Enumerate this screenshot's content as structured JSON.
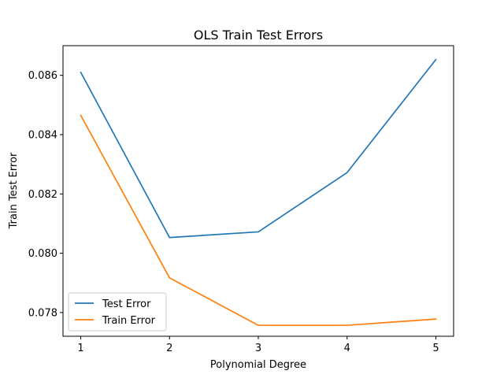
{
  "chart_data": {
    "type": "line",
    "title": "OLS Train Test Errors",
    "xlabel": "Polynomial Degree",
    "ylabel": "Train Test Error",
    "x": [
      1,
      2,
      3,
      4,
      5
    ],
    "xlim": [
      0.8,
      5.2
    ],
    "ylim": [
      0.0772,
      0.087
    ],
    "xticks": [
      1,
      2,
      3,
      4,
      5
    ],
    "yticks": [
      0.078,
      0.08,
      0.082,
      0.084,
      0.086
    ],
    "ytick_labels": [
      "0.078",
      "0.080",
      "0.082",
      "0.084",
      "0.086"
    ],
    "grid": false,
    "legend_position": "lower-left",
    "series": [
      {
        "name": "Test Error",
        "color": "#1f77b4",
        "values": [
          0.0861,
          0.08053,
          0.08072,
          0.08272,
          0.08653
        ]
      },
      {
        "name": "Train Error",
        "color": "#ff7f0e",
        "values": [
          0.08465,
          0.07917,
          0.07757,
          0.07757,
          0.07778
        ]
      }
    ]
  }
}
